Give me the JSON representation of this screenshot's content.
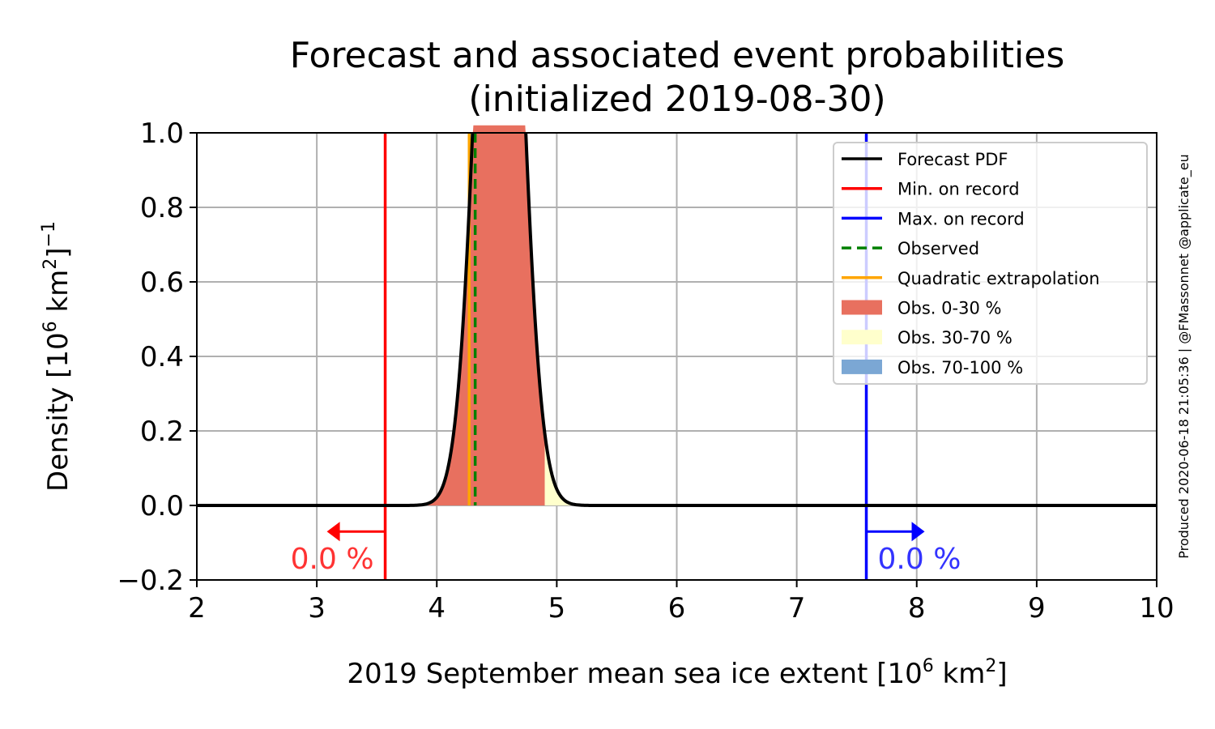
{
  "chart_data": {
    "type": "line",
    "title_line1": "Forecast and associated event probabilities",
    "title_line2": "(initialized 2019-08-30)",
    "xlabel_main": "2019 September mean sea ice extent [10",
    "xlabel_exp": "6",
    "xlabel_unit": " km",
    "xlabel_exp2": "2",
    "xlabel_end": "]",
    "ylabel_main": "Density [10",
    "ylabel_exp": "6",
    "ylabel_unit": " km",
    "ylabel_exp2": "2",
    "ylabel_end": "]",
    "ylabel_exp3": "−1",
    "xlim": [
      2,
      10
    ],
    "ylim": [
      -0.2,
      1.0
    ],
    "xticks": [
      2,
      3,
      4,
      5,
      6,
      7,
      8,
      9,
      10
    ],
    "xtick_labels": [
      "2",
      "3",
      "4",
      "5",
      "6",
      "7",
      "8",
      "9",
      "10"
    ],
    "yticks": [
      -0.2,
      0.0,
      0.2,
      0.4,
      0.6,
      0.8,
      1.0
    ],
    "ytick_labels": [
      "−0.2",
      "0.0",
      "0.2",
      "0.4",
      "0.6",
      "0.8",
      "1.0"
    ],
    "grid": true,
    "legend_position": "top-right",
    "forecast_pdf": {
      "name": "Forecast PDF",
      "mean": 4.52,
      "sd": 0.17,
      "color": "#000000"
    },
    "min_record": {
      "name": "Min. on record",
      "x": 3.57,
      "color": "#ff0000",
      "prob_label": "0.0 %",
      "label_color": "#ff3333"
    },
    "max_record": {
      "name": "Max. on record",
      "x": 7.58,
      "color": "#0000ff",
      "prob_label": "0.0 %",
      "label_color": "#3333ff"
    },
    "observed": {
      "name": "Observed",
      "x": 4.32,
      "color": "#008000"
    },
    "quadratic": {
      "name": "Quadratic extrapolation",
      "x": 4.27,
      "color": "#ffa500"
    },
    "terciles": [
      {
        "name": "Obs. 0-30 %",
        "from": 3.5,
        "to": 4.9,
        "color": "#e8705f"
      },
      {
        "name": "Obs. 30-70 %",
        "from": 4.9,
        "to": 5.6,
        "color": "#ffffcc"
      },
      {
        "name": "Obs. 70-100 %",
        "from": 5.6,
        "to": 5.6,
        "color": "#7ba7d4"
      }
    ],
    "side_note": "Produced 2020-06-18 21:05:36 | @FMassonnet @applicate_eu"
  }
}
